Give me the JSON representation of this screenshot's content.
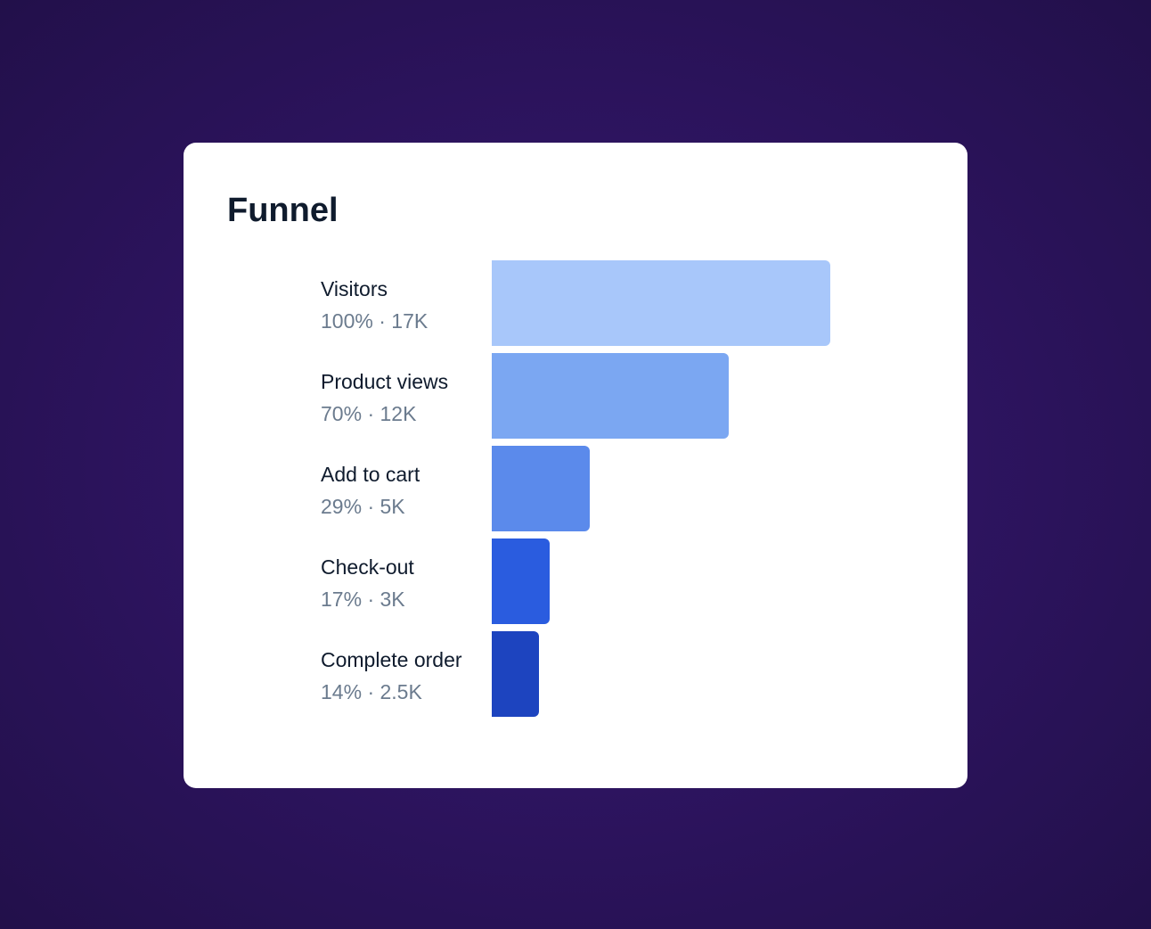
{
  "chart_data": {
    "type": "bar",
    "title": "Funnel",
    "orientation": "horizontal",
    "categories": [
      "Visitors",
      "Product views",
      "Add to cart",
      "Check-out",
      "Complete order"
    ],
    "values": [
      100,
      70,
      29,
      17,
      14
    ],
    "value_unit": "percent",
    "stages": [
      {
        "label": "Visitors",
        "percent": "100%",
        "count": "17K",
        "value": 100,
        "color": "#a8c7fa"
      },
      {
        "label": "Product views",
        "percent": "70%",
        "count": "12K",
        "value": 70,
        "color": "#7ba7f2"
      },
      {
        "label": "Add to cart",
        "percent": "29%",
        "count": "5K",
        "value": 29,
        "color": "#5b8aeb"
      },
      {
        "label": "Check-out",
        "percent": "17%",
        "count": "3K",
        "value": 17,
        "color": "#2a5cdf"
      },
      {
        "label": "Complete order",
        "percent": "14%",
        "count": "2.5K",
        "value": 14,
        "color": "#1d44bf"
      }
    ],
    "separator": "·",
    "grid": false,
    "legend": "none"
  }
}
